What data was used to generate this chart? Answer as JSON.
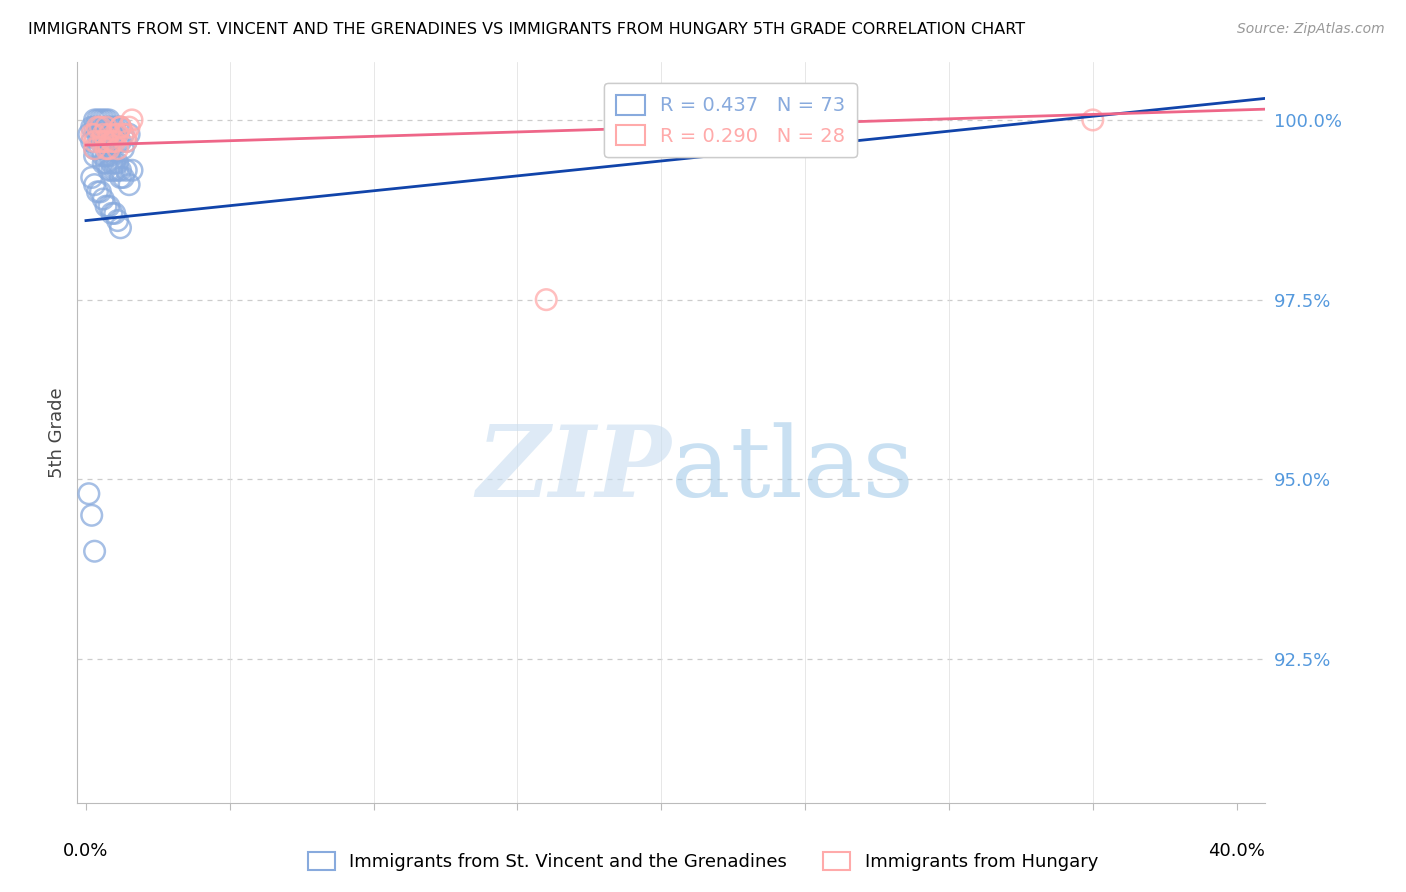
{
  "title": "IMMIGRANTS FROM ST. VINCENT AND THE GRENADINES VS IMMIGRANTS FROM HUNGARY 5TH GRADE CORRELATION CHART",
  "source_text": "Source: ZipAtlas.com",
  "ylabel": "5th Grade",
  "ytick_labels": [
    "100.0%",
    "97.5%",
    "95.0%",
    "92.5%"
  ],
  "ytick_values": [
    1.0,
    0.975,
    0.95,
    0.925
  ],
  "ylim": [
    0.905,
    1.008
  ],
  "xlim": [
    -0.003,
    0.41
  ],
  "watermark_part1": "ZIP",
  "watermark_part2": "atlas",
  "legend_r1": "R = 0.437",
  "legend_n1": "N = 73",
  "legend_r2": "R = 0.290",
  "legend_n2": "N = 28",
  "legend_label1": "Immigrants from St. Vincent and the Grenadines",
  "legend_label2": "Immigrants from Hungary",
  "blue_color": "#88aadd",
  "pink_color": "#ffaaaa",
  "blue_line_color": "#1144aa",
  "pink_line_color": "#ee6688",
  "blue_scatter_x": [
    0.002,
    0.003,
    0.003,
    0.004,
    0.004,
    0.004,
    0.005,
    0.005,
    0.005,
    0.006,
    0.006,
    0.006,
    0.006,
    0.007,
    0.007,
    0.007,
    0.007,
    0.008,
    0.008,
    0.008,
    0.009,
    0.009,
    0.009,
    0.01,
    0.01,
    0.01,
    0.011,
    0.011,
    0.012,
    0.012,
    0.013,
    0.013,
    0.014,
    0.015,
    0.001,
    0.002,
    0.003,
    0.003,
    0.004,
    0.005,
    0.005,
    0.006,
    0.006,
    0.007,
    0.007,
    0.008,
    0.008,
    0.009,
    0.009,
    0.01,
    0.01,
    0.011,
    0.011,
    0.012,
    0.012,
    0.013,
    0.014,
    0.015,
    0.016,
    0.002,
    0.003,
    0.004,
    0.005,
    0.006,
    0.007,
    0.008,
    0.009,
    0.01,
    0.011,
    0.012,
    0.001,
    0.002,
    0.003
  ],
  "blue_scatter_y": [
    0.999,
    0.999,
    1.0,
    0.999,
    1.0,
    0.998,
    1.0,
    0.999,
    0.998,
    1.0,
    0.999,
    0.998,
    0.997,
    1.0,
    0.999,
    0.998,
    0.997,
    1.0,
    0.999,
    0.997,
    0.999,
    0.998,
    0.997,
    0.999,
    0.998,
    0.997,
    0.999,
    0.997,
    0.999,
    0.997,
    0.998,
    0.996,
    0.997,
    0.998,
    0.998,
    0.997,
    0.996,
    0.995,
    0.996,
    0.997,
    0.996,
    0.995,
    0.994,
    0.995,
    0.994,
    0.995,
    0.993,
    0.994,
    0.993,
    0.994,
    0.993,
    0.994,
    0.993,
    0.993,
    0.992,
    0.992,
    0.993,
    0.991,
    0.993,
    0.992,
    0.991,
    0.99,
    0.99,
    0.989,
    0.988,
    0.988,
    0.987,
    0.987,
    0.986,
    0.985,
    0.948,
    0.945,
    0.94
  ],
  "pink_scatter_x": [
    0.002,
    0.003,
    0.004,
    0.005,
    0.006,
    0.007,
    0.007,
    0.008,
    0.009,
    0.01,
    0.011,
    0.012,
    0.013,
    0.014,
    0.015,
    0.016,
    0.003,
    0.005,
    0.008,
    0.003,
    0.006,
    0.007,
    0.01,
    0.011,
    0.012,
    0.014,
    0.16,
    0.35
  ],
  "pink_scatter_y": [
    0.998,
    0.998,
    0.999,
    0.999,
    0.998,
    0.999,
    0.997,
    0.998,
    0.997,
    0.998,
    0.998,
    0.999,
    0.998,
    0.998,
    0.999,
    1.0,
    0.997,
    0.997,
    0.996,
    0.996,
    0.997,
    0.996,
    0.997,
    0.996,
    0.999,
    0.997,
    0.975,
    1.0
  ],
  "blue_trend_x0": 0.0,
  "blue_trend_x1": 0.41,
  "blue_trend_y0": 0.986,
  "blue_trend_y1": 1.003,
  "pink_trend_x0": 0.0,
  "pink_trend_x1": 0.41,
  "pink_trend_y0": 0.9965,
  "pink_trend_y1": 1.0015
}
